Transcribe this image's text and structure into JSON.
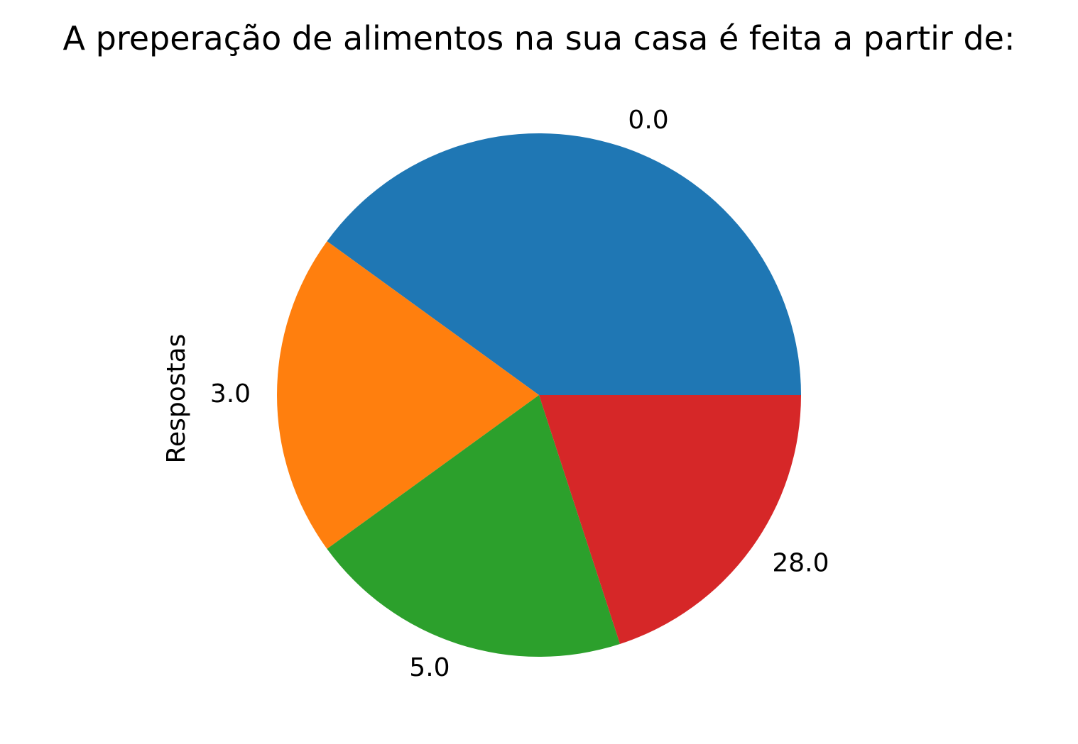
{
  "chart_data": {
    "type": "pie",
    "title": "A preperação de alimentos na sua casa é feita a partir de:",
    "ylabel": "Respostas",
    "categories": [
      "0.0",
      "3.0",
      "5.0",
      "28.0"
    ],
    "values": [
      40,
      20,
      20,
      20
    ],
    "colors": [
      "#1f77b4",
      "#ff7f0e",
      "#2ca02c",
      "#d62728"
    ],
    "start_angle_deg": 0,
    "direction": "counterclockwise",
    "legend": "none"
  }
}
